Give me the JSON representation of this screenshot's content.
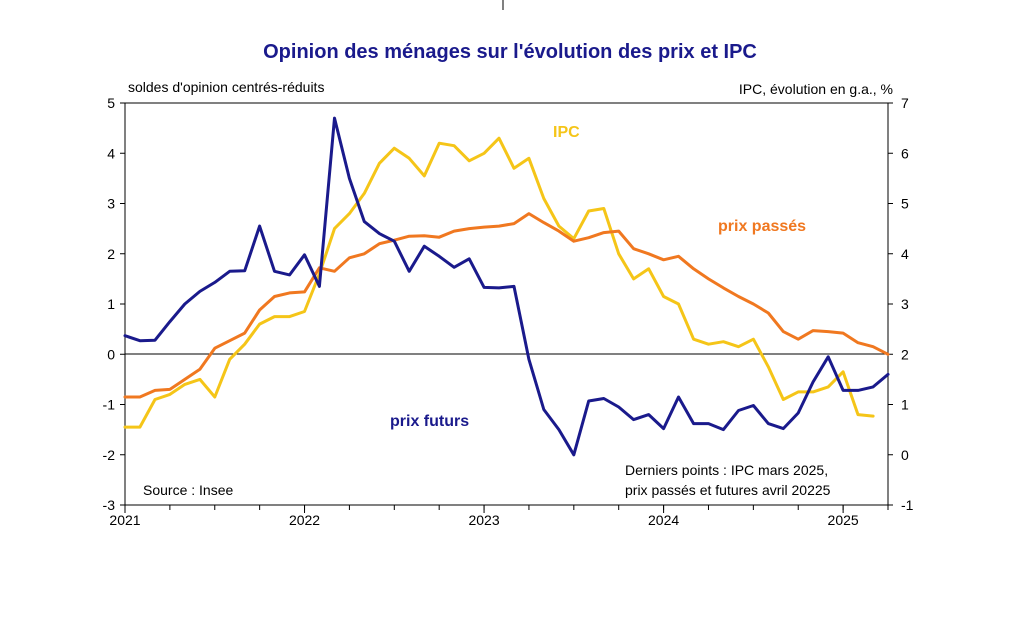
{
  "chart_data": {
    "type": "line",
    "title": "Opinion des ménages sur l'évolution des prix et IPC",
    "ylabel_left": "soldes d'opinion centrés-réduits",
    "ylabel_right": "IPC, évolution en g.a., %",
    "ylim_left": [
      -3,
      5
    ],
    "ylim_right": [
      -1,
      7
    ],
    "yticks_left": [
      "5",
      "4",
      "3",
      "2",
      "1",
      "0",
      "-1",
      "-2",
      "-3"
    ],
    "yticks_right": [
      "7",
      "6",
      "5",
      "4",
      "3",
      "2",
      "1",
      "0",
      "-1"
    ],
    "xlim": [
      2021.0,
      2025.25
    ],
    "xticks": [
      {
        "value": 2021,
        "label": "2021"
      },
      {
        "value": 2022,
        "label": "2022"
      },
      {
        "value": 2023,
        "label": "2023"
      },
      {
        "value": 2024,
        "label": "2024"
      },
      {
        "value": 2025,
        "label": "2025"
      }
    ],
    "source": "Source : Insee",
    "note_line1": "Derniers points : IPC mars 2025,",
    "note_line2": "prix passés et futures avril 20225",
    "series": [
      {
        "name": "prix futurs",
        "axis": "left",
        "color": "#1a1a8c",
        "x": [
          2021.0,
          2021.083,
          2021.167,
          2021.25,
          2021.333,
          2021.417,
          2021.5,
          2021.583,
          2021.667,
          2021.75,
          2021.833,
          2021.917,
          2022.0,
          2022.083,
          2022.167,
          2022.25,
          2022.333,
          2022.417,
          2022.5,
          2022.583,
          2022.667,
          2022.75,
          2022.833,
          2022.917,
          2023.0,
          2023.083,
          2023.167,
          2023.25,
          2023.333,
          2023.417,
          2023.5,
          2023.583,
          2023.667,
          2023.75,
          2023.833,
          2023.917,
          2024.0,
          2024.083,
          2024.167,
          2024.25,
          2024.333,
          2024.417,
          2024.5,
          2024.583,
          2024.667,
          2024.75,
          2024.833,
          2024.917,
          2025.0,
          2025.083,
          2025.167,
          2025.25
        ],
        "values": [
          0.37,
          0.27,
          0.28,
          0.65,
          1.0,
          1.25,
          1.43,
          1.65,
          1.66,
          2.55,
          1.65,
          1.58,
          1.98,
          1.35,
          4.7,
          3.5,
          2.64,
          2.4,
          2.25,
          1.65,
          2.15,
          1.95,
          1.73,
          1.9,
          1.33,
          1.32,
          1.35,
          -0.1,
          -1.1,
          -1.5,
          -2.0,
          -0.93,
          -0.88,
          -1.05,
          -1.3,
          -1.2,
          -1.48,
          -0.85,
          -1.38,
          -1.38,
          -1.5,
          -1.12,
          -1.02,
          -1.38,
          -1.48,
          -1.17,
          -0.55,
          -0.05,
          -0.72,
          -0.72,
          -0.65,
          -0.4
        ]
      },
      {
        "name": "prix passés",
        "axis": "left",
        "color": "#f07820",
        "x": [
          2021.0,
          2021.083,
          2021.167,
          2021.25,
          2021.333,
          2021.417,
          2021.5,
          2021.583,
          2021.667,
          2021.75,
          2021.833,
          2021.917,
          2022.0,
          2022.083,
          2022.167,
          2022.25,
          2022.333,
          2022.417,
          2022.5,
          2022.583,
          2022.667,
          2022.75,
          2022.833,
          2022.917,
          2023.0,
          2023.083,
          2023.167,
          2023.25,
          2023.333,
          2023.417,
          2023.5,
          2023.583,
          2023.667,
          2023.75,
          2023.833,
          2023.917,
          2024.0,
          2024.083,
          2024.167,
          2024.25,
          2024.333,
          2024.417,
          2024.5,
          2024.583,
          2024.667,
          2024.75,
          2024.833,
          2024.917,
          2025.0,
          2025.083,
          2025.167,
          2025.25
        ],
        "values": [
          -0.85,
          -0.85,
          -0.72,
          -0.7,
          -0.5,
          -0.3,
          0.12,
          0.27,
          0.42,
          0.88,
          1.15,
          1.22,
          1.24,
          1.72,
          1.65,
          1.92,
          2.0,
          2.2,
          2.27,
          2.35,
          2.36,
          2.33,
          2.45,
          2.5,
          2.53,
          2.55,
          2.6,
          2.8,
          2.62,
          2.45,
          2.25,
          2.32,
          2.42,
          2.45,
          2.1,
          2.0,
          1.88,
          1.95,
          1.7,
          1.5,
          1.32,
          1.15,
          1.0,
          0.82,
          0.45,
          0.3,
          0.47,
          0.45,
          0.42,
          0.23,
          0.15,
          0.0
        ]
      },
      {
        "name": "IPC",
        "axis": "right",
        "color": "#f5c518",
        "x": [
          2021.0,
          2021.083,
          2021.167,
          2021.25,
          2021.333,
          2021.417,
          2021.5,
          2021.583,
          2021.667,
          2021.75,
          2021.833,
          2021.917,
          2022.0,
          2022.083,
          2022.167,
          2022.25,
          2022.333,
          2022.417,
          2022.5,
          2022.583,
          2022.667,
          2022.75,
          2022.833,
          2022.917,
          2023.0,
          2023.083,
          2023.167,
          2023.25,
          2023.333,
          2023.417,
          2023.5,
          2023.583,
          2023.667,
          2023.75,
          2023.833,
          2023.917,
          2024.0,
          2024.083,
          2024.167,
          2024.25,
          2024.333,
          2024.417,
          2024.5,
          2024.583,
          2024.667,
          2024.75,
          2024.833,
          2024.917,
          2025.0,
          2025.083,
          2025.167
        ],
        "values": [
          0.55,
          0.55,
          1.1,
          1.2,
          1.4,
          1.5,
          1.15,
          1.9,
          2.2,
          2.6,
          2.75,
          2.75,
          2.85,
          3.6,
          4.5,
          4.8,
          5.2,
          5.8,
          6.1,
          5.9,
          5.55,
          6.2,
          6.15,
          5.85,
          6.0,
          6.3,
          5.7,
          5.9,
          5.1,
          4.55,
          4.3,
          4.85,
          4.9,
          4.0,
          3.5,
          3.7,
          3.15,
          3.0,
          2.3,
          2.2,
          2.25,
          2.15,
          2.3,
          1.75,
          1.1,
          1.25,
          1.25,
          1.35,
          1.65,
          0.8,
          0.77
        ]
      }
    ],
    "series_labels": {
      "prix_futurs": "prix futurs",
      "prix_passes": "prix passés",
      "ipc": "IPC"
    }
  }
}
